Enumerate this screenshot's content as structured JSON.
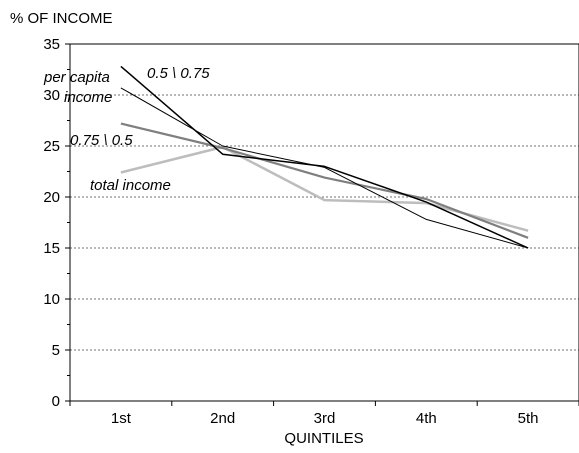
{
  "chart_data": {
    "type": "line",
    "ylabel": "% OF INCOME",
    "xlabel": "QUINTILES",
    "categories": [
      "1st",
      "2nd",
      "3rd",
      "4th",
      "5th"
    ],
    "ylim": [
      0,
      35
    ],
    "yticks": [
      0,
      5,
      10,
      15,
      20,
      25,
      30,
      35
    ],
    "grid": "horizontal dashed",
    "series": [
      {
        "name": "total income",
        "values": [
          22.4,
          24.9,
          19.7,
          19.4,
          16.7
        ],
        "color": "#bdbdbd",
        "width": 2.5
      },
      {
        "name": "0.75 \\ 0.5",
        "values": [
          27.2,
          24.8,
          21.9,
          19.8,
          16.0
        ],
        "color": "#7f7f7f",
        "width": 2.2
      },
      {
        "name": "per capita income",
        "values": [
          30.7,
          25.0,
          22.9,
          17.8,
          15.0
        ],
        "color": "#000000",
        "width": 1.0
      },
      {
        "name": "0.5 \\ 0.75",
        "values": [
          32.8,
          24.2,
          23.0,
          19.5,
          15.0
        ],
        "color": "#000000",
        "width": 1.5
      }
    ],
    "annotations": [
      {
        "id": "lbl-per-capita-1",
        "text": "per capita"
      },
      {
        "id": "lbl-per-capita-2",
        "text": "income"
      },
      {
        "id": "lbl-05-075",
        "text": "0.5 \\ 0.75"
      },
      {
        "id": "lbl-075-05",
        "text": "0.75 \\ 0.5"
      },
      {
        "id": "lbl-total",
        "text": "total income"
      }
    ]
  }
}
